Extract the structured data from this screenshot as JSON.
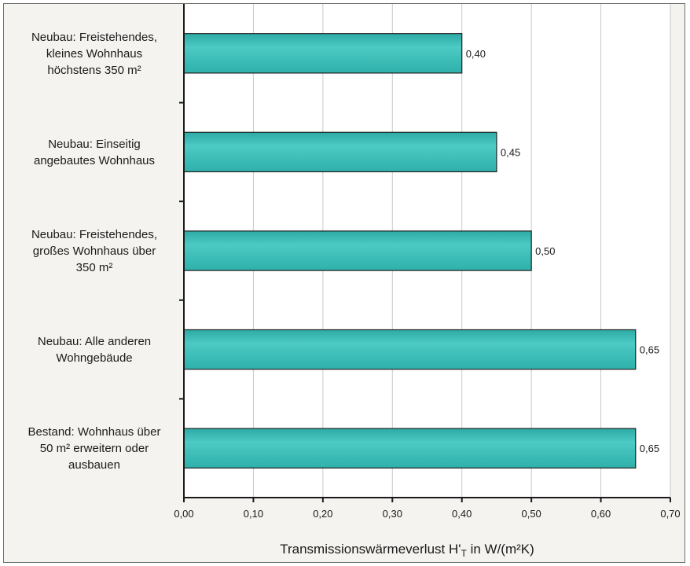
{
  "chart_data": {
    "type": "bar",
    "orientation": "horizontal",
    "categories": [
      [
        "Neubau: Freistehendes,",
        "kleines Wohnhaus",
        "höchstens 350 m²"
      ],
      [
        "Neubau: Einseitig",
        "angebautes Wohnhaus"
      ],
      [
        "Neubau: Freistehendes,",
        "großes Wohnhaus über",
        "350 m²"
      ],
      [
        "Neubau: Alle anderen",
        "Wohngebäude"
      ],
      [
        "Bestand: Wohnhaus über",
        "50 m² erweitern oder",
        "ausbauen"
      ]
    ],
    "values": [
      0.4,
      0.45,
      0.5,
      0.65,
      0.65
    ],
    "value_labels": [
      "0,40",
      "0,45",
      "0,50",
      "0,65",
      "0,65"
    ],
    "xticks": [
      0,
      0.1,
      0.2,
      0.3,
      0.4,
      0.5,
      0.6,
      0.7
    ],
    "xtick_labels": [
      "0,00",
      "0,10",
      "0,20",
      "0,30",
      "0,40",
      "0,50",
      "0,60",
      "0,70"
    ],
    "xlim": [
      0,
      0.7
    ],
    "xlabel": "Transmissionswärmeverlust H'",
    "xlabel_sub": "T",
    "xlabel_suffix": " in W/(m²K)",
    "ylabel": "",
    "title": "",
    "grid": "vertical",
    "legend": "none",
    "bar_color": "#37bcb6",
    "bar_edge_color": "#222222",
    "grid_color": "#c8c8c8"
  }
}
